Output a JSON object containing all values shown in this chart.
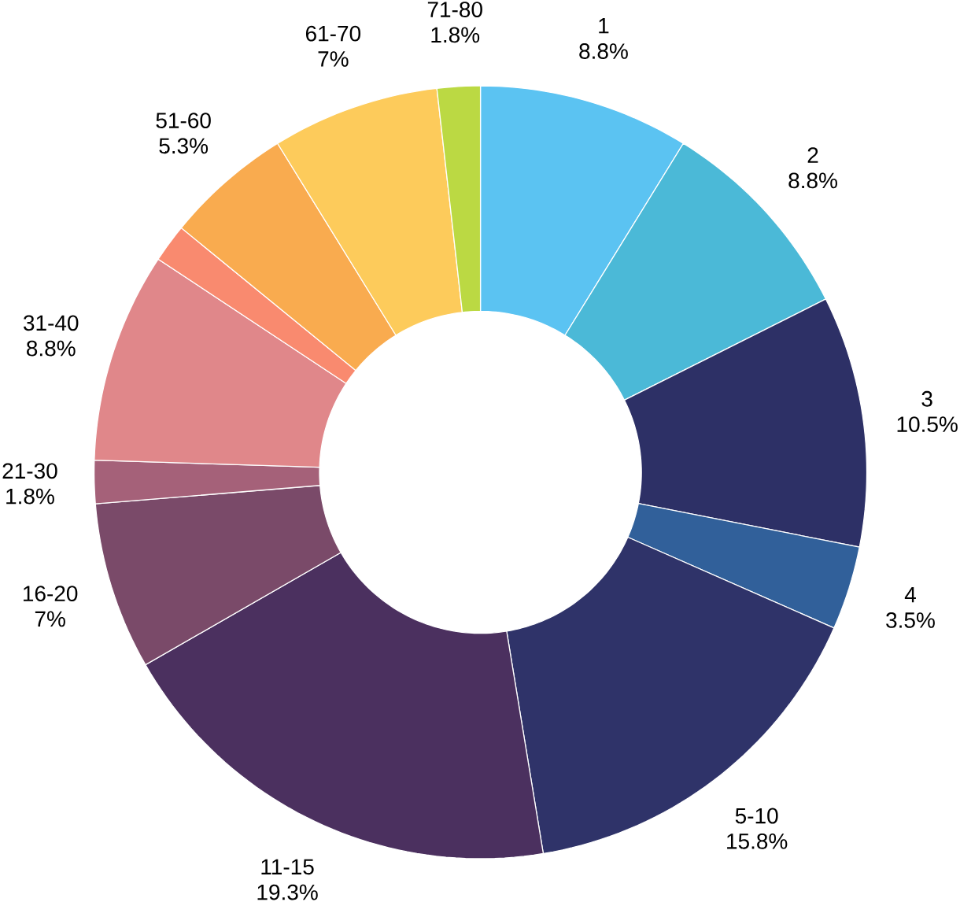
{
  "chart_data": {
    "type": "donut",
    "categories": [
      "1",
      "2",
      "3",
      "4",
      "5-10",
      "11-15",
      "16-20",
      "21-30",
      "31-40",
      null,
      "51-60",
      "61-70",
      "71-80"
    ],
    "values": [
      8.8,
      8.8,
      10.5,
      3.5,
      15.8,
      19.3,
      7,
      1.8,
      8.8,
      1.6,
      5.3,
      7,
      1.8
    ],
    "value_labels": [
      "8.8%",
      "8.8%",
      "10.5%",
      "3.5%",
      "15.8%",
      "19.3%",
      "7%",
      "1.8%",
      "8.8%",
      null,
      "5.3%",
      "7%",
      "1.8%"
    ],
    "colors": [
      "#5bc3f2",
      "#4bb9d7",
      "#2d3066",
      "#31609a",
      "#2f3369",
      "#4b305f",
      "#7a4a69",
      "#a56179",
      "#e0878a",
      "#f98a6f",
      "#f9ab4f",
      "#fdcb5b",
      "#bbd943"
    ]
  }
}
